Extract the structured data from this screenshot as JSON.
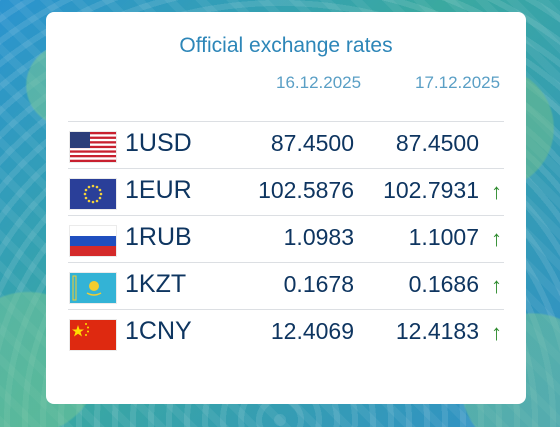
{
  "title": "Official exchange rates",
  "dates": [
    "16.12.2025",
    "17.12.2025"
  ],
  "rates": [
    {
      "code": "1USD",
      "flag": "us-flag-icon",
      "rate1": "87.4500",
      "rate2": "87.4500",
      "trend": ""
    },
    {
      "code": "1EUR",
      "flag": "eu-flag-icon",
      "rate1": "102.5876",
      "rate2": "102.7931",
      "trend": "↑"
    },
    {
      "code": "1RUB",
      "flag": "ru-flag-icon",
      "rate1": "1.0983",
      "rate2": "1.1007",
      "trend": "↑"
    },
    {
      "code": "1KZT",
      "flag": "kz-flag-icon",
      "rate1": "0.1678",
      "rate2": "0.1686",
      "trend": "↑"
    },
    {
      "code": "1CNY",
      "flag": "cn-flag-icon",
      "rate1": "12.4069",
      "rate2": "12.4183",
      "trend": "↑"
    }
  ],
  "colors": {
    "up": "#2e8b2e",
    "text": "#0e3560",
    "title": "#2d86b8"
  }
}
